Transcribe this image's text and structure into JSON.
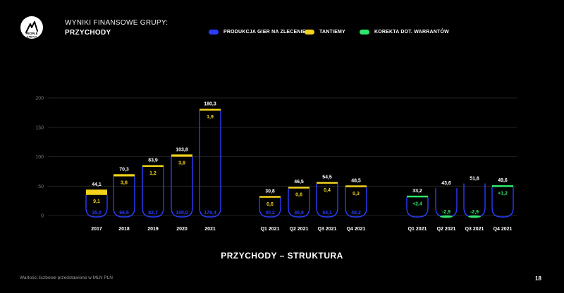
{
  "header": {
    "title": "WYNIKI FINANSOWE GRUPY:",
    "subtitle": "PRZYCHODY"
  },
  "logo": {
    "text_top": "PEOPLE",
    "text_bottom": "CAN FLY"
  },
  "colors": {
    "background": "#000000",
    "production": "#2a3cff",
    "royalties": "#f2d21b",
    "warrants": "#2ee66b",
    "grid": "#2e2e2e"
  },
  "legend": [
    {
      "label": "PRODUKCJA GIER NA ZLECENIE",
      "color": "#2a3cff"
    },
    {
      "label": "TANTIEMY",
      "color": "#f2d21b"
    },
    {
      "label": "KOREKTA DOT. WARRANTÓW",
      "color": "#2ee66b"
    }
  ],
  "chart_data": {
    "type": "bar",
    "stacked": true,
    "title": "PRZYCHODY – STRUKTURA",
    "ylim": [
      0,
      200
    ],
    "yticks": [
      "0",
      "50",
      "100",
      "150",
      "200"
    ],
    "grid": true,
    "legend_position": "top",
    "categories": [
      "2017",
      "2018",
      "2019",
      "2020",
      "2021",
      "Q1 2021",
      "Q2 2021",
      "Q3 2021",
      "Q4 2021",
      "Q1 2021",
      "Q2 2021",
      "Q3 2021",
      "Q4 2021"
    ],
    "series": [
      {
        "name": "PRODUKCJA GIER NA ZLECENIE",
        "values": [
          35.0,
          66.5,
          82.7,
          100.0,
          178.4,
          30.2,
          45.9,
          54.1,
          48.2,
          30.8,
          46.5,
          54.5,
          48.5
        ],
        "labels": [
          "35,0",
          "66,5",
          "82,7",
          "100,0",
          "178,4",
          "30,2",
          "45,9",
          "54,1",
          "48,2",
          "",
          "",
          "",
          ""
        ]
      },
      {
        "name": "TANTIEMY",
        "values": [
          9.1,
          3.8,
          1.2,
          3.8,
          1.9,
          0.6,
          0.6,
          0.4,
          0.3,
          0,
          0,
          0,
          0
        ],
        "labels": [
          "9,1",
          "3,8",
          "1,2",
          "3,8",
          "1,9",
          "0,6",
          "0,6",
          "0,4",
          "0,3",
          "",
          "",
          "",
          ""
        ]
      },
      {
        "name": "KOREKTA DOT. WARRANTÓW",
        "values": [
          0,
          0,
          0,
          0,
          0,
          0,
          0,
          0,
          0,
          2.4,
          -2.9,
          -2.9,
          1.2
        ],
        "labels": [
          "",
          "",
          "",
          "",
          "",
          "",
          "",
          "",
          "",
          "+2,4",
          "-2,9",
          "-2,9",
          "+1,2"
        ]
      }
    ],
    "totals": [
      44.1,
      70.3,
      83.9,
      103.8,
      180.3,
      30.8,
      46.5,
      54.5,
      48.5,
      33.2,
      43.6,
      51.6,
      49.6
    ],
    "total_labels": [
      "44,1",
      "70,3",
      "83,9",
      "103,8",
      "180,3",
      "30,8",
      "46,5",
      "54,5",
      "48,5",
      "33,2",
      "43,6",
      "51,6",
      "49,6"
    ]
  },
  "footer": {
    "note": "Wartości liczbowe przedstawione w MLN PLN",
    "page": "18"
  }
}
